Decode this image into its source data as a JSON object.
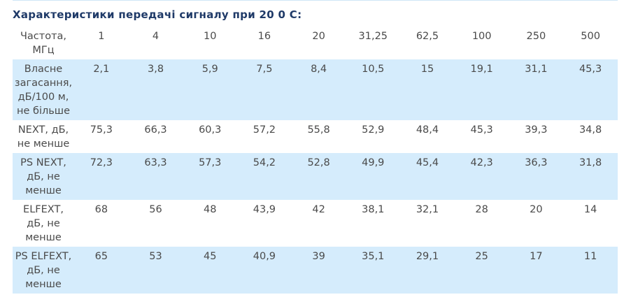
{
  "title": "Характеристики передачі сигналу при 20 0 С:",
  "table": {
    "header": [
      "Частота, МГц",
      "1",
      "4",
      "10",
      "16",
      "20",
      "31,25",
      "62,5",
      "100",
      "250",
      "500"
    ],
    "rows": [
      [
        "Власне загасання, дБ/100 м, не більше",
        "2,1",
        "3,8",
        "5,9",
        "7,5",
        "8,4",
        "10,5",
        "15",
        "19,1",
        "31,1",
        "45,3"
      ],
      [
        "NEXT, дБ, не менше",
        "75,3",
        "66,3",
        "60,3",
        "57,2",
        "55,8",
        "52,9",
        "48,4",
        "45,3",
        "39,3",
        "34,8"
      ],
      [
        "PS NEXT, дБ, не менше",
        "72,3",
        "63,3",
        "57,3",
        "54,2",
        "52,8",
        "49,9",
        "45,4",
        "42,3",
        "36,3",
        "31,8"
      ],
      [
        "ELFEXT, дБ, не менше",
        "68",
        "56",
        "48",
        "43,9",
        "42",
        "38,1",
        "32,1",
        "28",
        "20",
        "14"
      ],
      [
        "PS ELFEXT, дБ, не менше",
        "65",
        "53",
        "45",
        "40,9",
        "39",
        "35,1",
        "29,1",
        "25",
        "17",
        "11"
      ]
    ]
  }
}
